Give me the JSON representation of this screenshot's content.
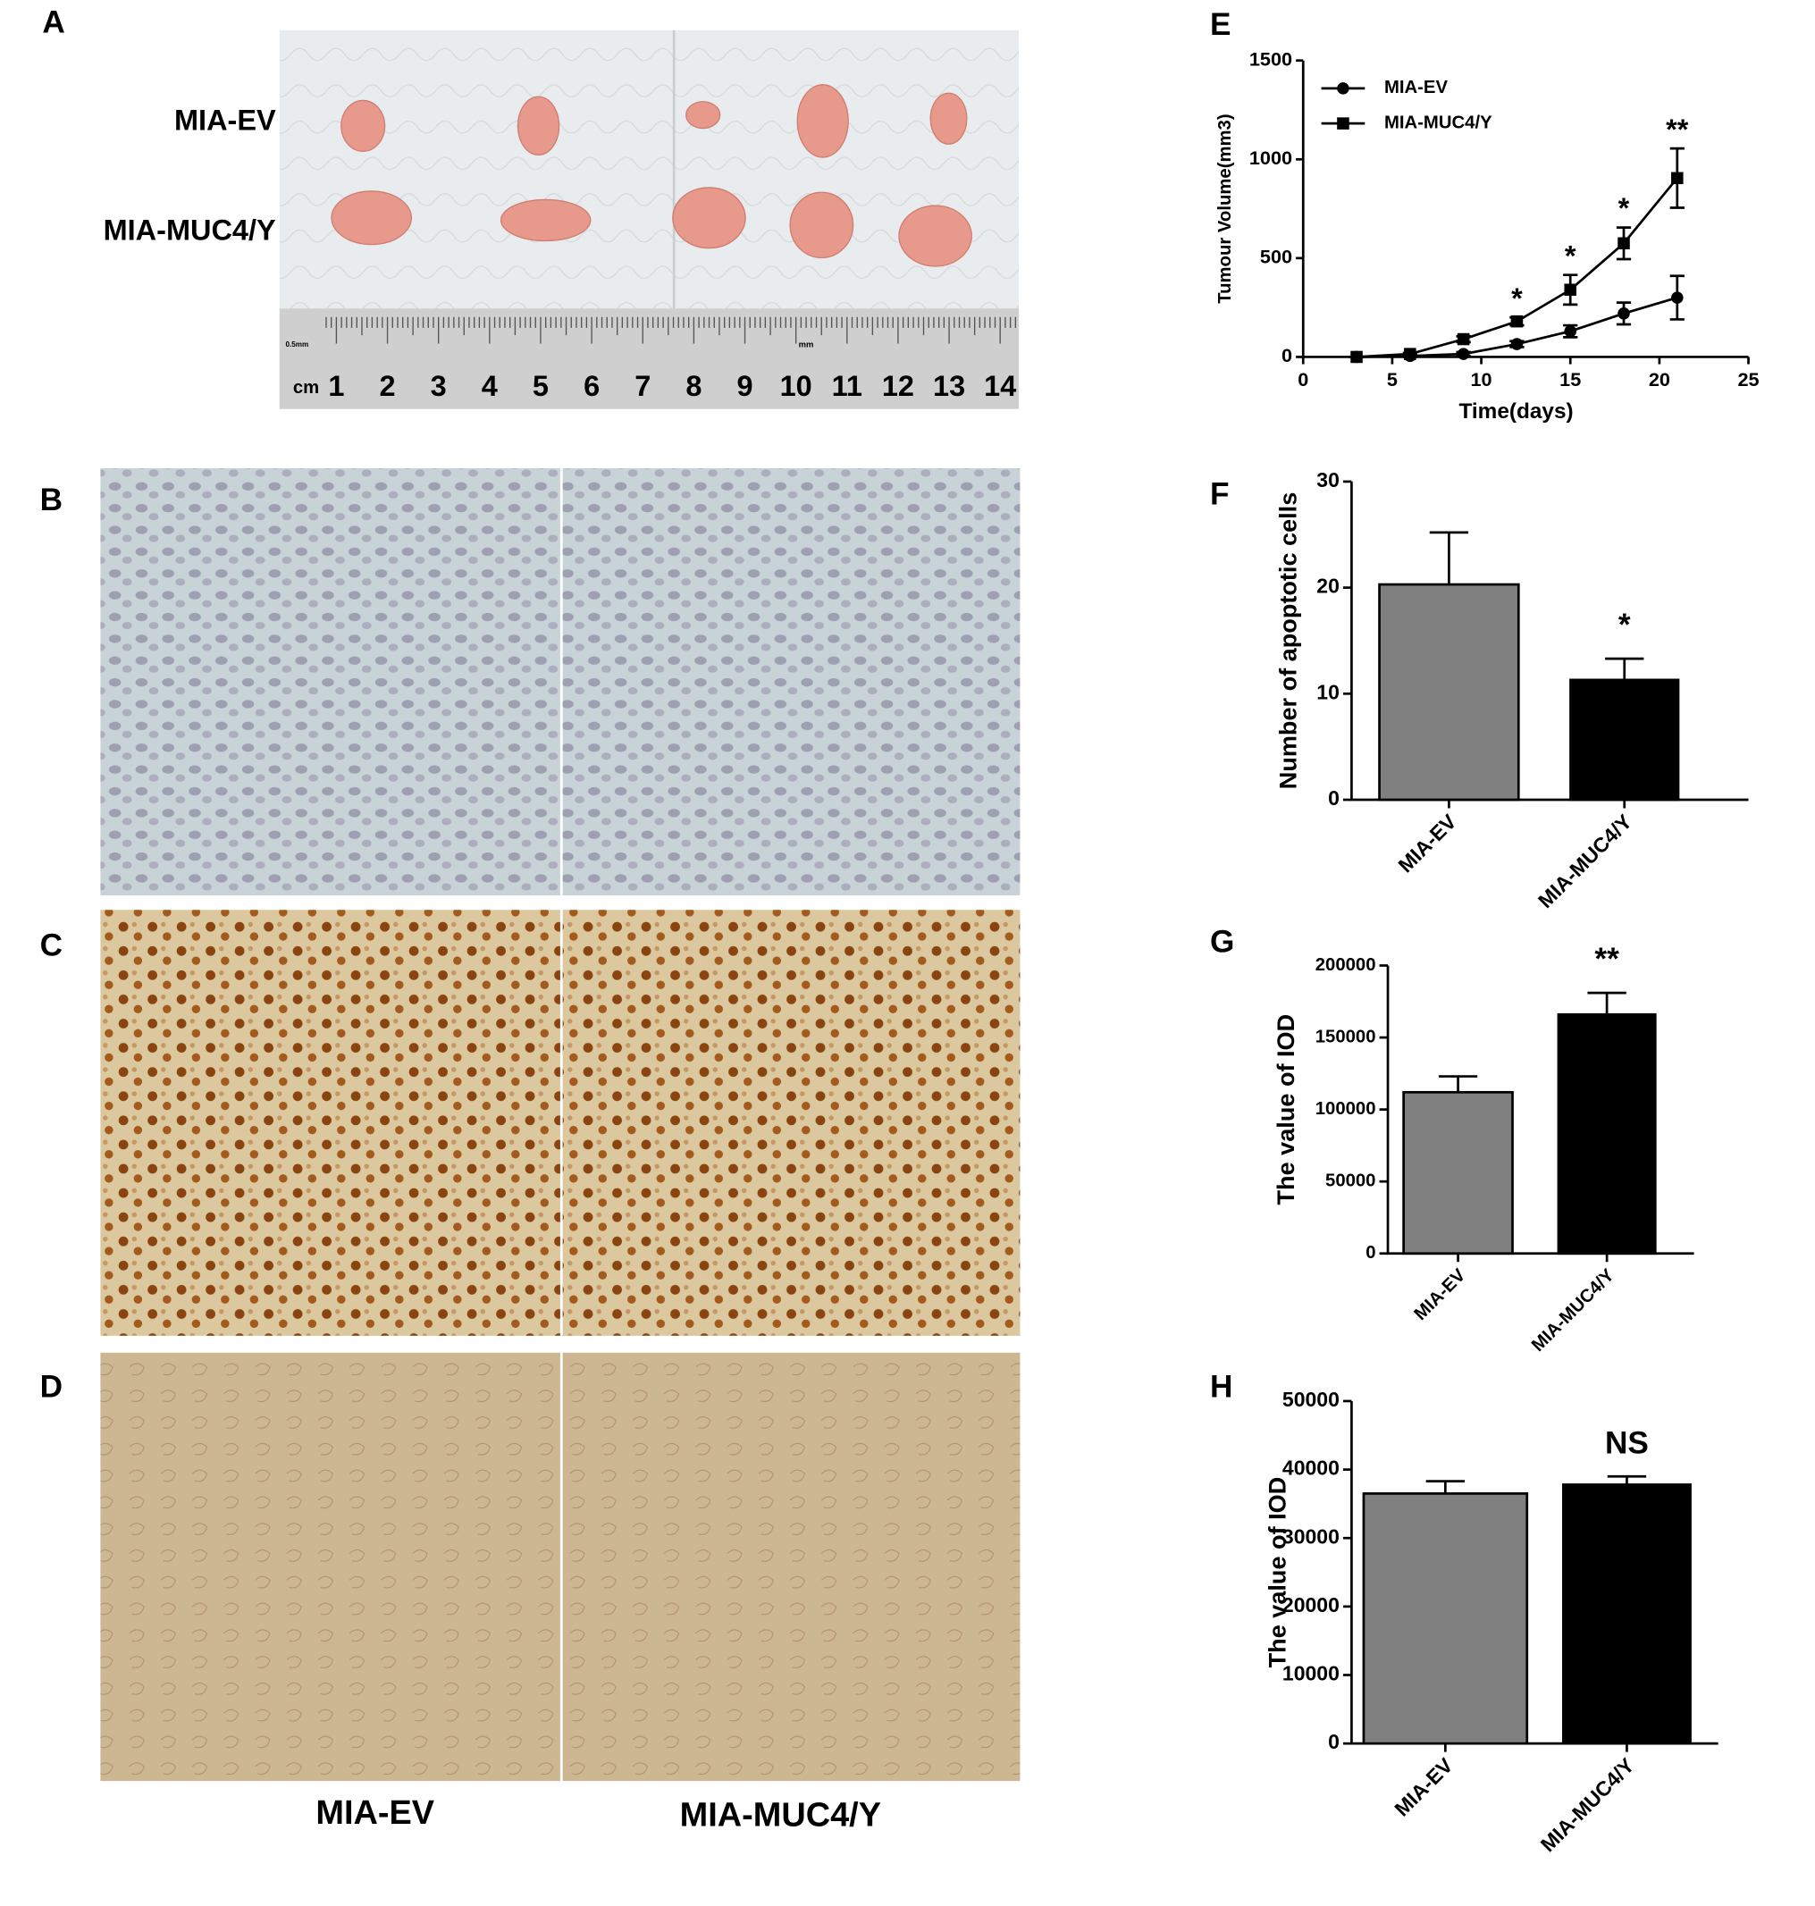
{
  "letters": [
    "A",
    "B",
    "C",
    "D",
    "E",
    "F",
    "G",
    "H"
  ],
  "photo": {
    "row_labels": [
      "MIA-EV",
      "MIA-MUC4/Y"
    ],
    "ruler_unit": "cm",
    "ruler_small": "0.5mm",
    "ruler_mm": "mm",
    "ruler_numbers": [
      1,
      2,
      3,
      4,
      5,
      6,
      7,
      8,
      9,
      10,
      11,
      12,
      13,
      14
    ]
  },
  "column_labels": [
    "MIA-EV",
    "MIA-MUC4/Y"
  ],
  "chart_data": [
    {
      "type": "line",
      "y_label": "Tumour Volume(mm3)",
      "x_label": "Time(days)",
      "x": [
        3,
        6,
        9,
        12,
        15,
        18,
        21
      ],
      "series": [
        {
          "name": "MIA-EV",
          "color": "#000000",
          "marker": "circle",
          "values": [
            0,
            5,
            15,
            65,
            130,
            220,
            300
          ],
          "errors": [
            0,
            5,
            10,
            15,
            30,
            55,
            110
          ]
        },
        {
          "name": "MIA-MUC4/Y",
          "color": "#000000",
          "marker": "square",
          "values": [
            0,
            15,
            90,
            180,
            340,
            575,
            905
          ],
          "errors": [
            0,
            5,
            15,
            20,
            75,
            80,
            150
          ]
        }
      ],
      "significance": [
        null,
        null,
        null,
        "*",
        "*",
        "*",
        "**"
      ],
      "xlim": [
        0,
        25
      ],
      "xticks": [
        0,
        5,
        10,
        15,
        20,
        25
      ],
      "ylim": [
        0,
        1500
      ],
      "yticks": [
        0,
        500,
        1000,
        1500
      ],
      "legend": "upper-left"
    },
    {
      "type": "bar",
      "y_label": "Number of apoptotic cells",
      "categories": [
        "MIA-EV",
        "MIA-MUC4/Y"
      ],
      "values": [
        20.3,
        11.3
      ],
      "errors": [
        4.9,
        2.0
      ],
      "colors": [
        "#808080",
        "#000000"
      ],
      "significance": [
        null,
        "*"
      ],
      "ylim": [
        0,
        30
      ],
      "yticks": [
        0,
        10,
        20,
        30
      ]
    },
    {
      "type": "bar",
      "y_label": "The value of IOD",
      "categories": [
        "MIA-EV",
        "MIA-MUC4/Y"
      ],
      "values": [
        112000,
        166000
      ],
      "errors": [
        11000,
        15000
      ],
      "colors": [
        "#808080",
        "#000000"
      ],
      "significance": [
        null,
        "**"
      ],
      "ylim": [
        0,
        200000
      ],
      "yticks": [
        0,
        50000,
        100000,
        150000,
        200000
      ]
    },
    {
      "type": "bar",
      "y_label": "The value of IOD",
      "categories": [
        "MIA-EV",
        "MIA-MUC4/Y"
      ],
      "values": [
        36500,
        37800
      ],
      "errors": [
        1800,
        1200
      ],
      "colors": [
        "#808080",
        "#000000"
      ],
      "significance": [
        null,
        "NS"
      ],
      "ylim": [
        0,
        50000
      ],
      "yticks": [
        0,
        10000,
        20000,
        30000,
        40000,
        50000
      ]
    }
  ]
}
